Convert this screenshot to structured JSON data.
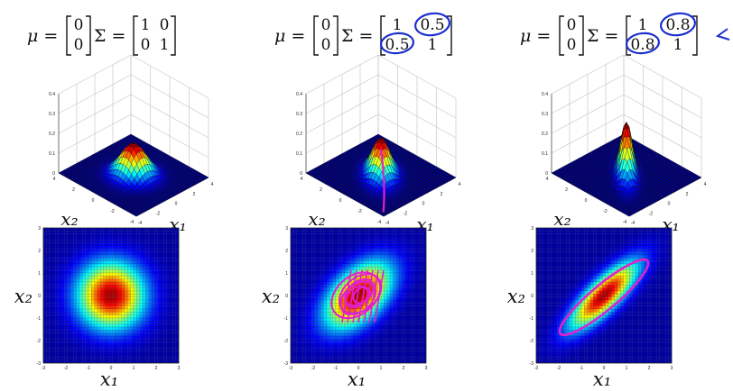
{
  "panels": [
    {
      "mu_label": "μ =",
      "mu": [
        "0",
        "0"
      ],
      "sigma_label": "Σ =",
      "sigma": [
        [
          "1",
          "0"
        ],
        [
          "0",
          "1"
        ]
      ],
      "rho": 0.0,
      "annotations": "none",
      "surface": {
        "z_ticks": [
          "0.4",
          "0.3",
          "0.2",
          "0.1",
          "0"
        ],
        "x2_ticks": [
          "4",
          "2",
          "0",
          "-2",
          "-4"
        ],
        "x1_ticks": [
          "-4",
          "-2",
          "0",
          "2",
          "4"
        ],
        "x2_label": "x₂",
        "x1_label": "x₁"
      },
      "heatmap": {
        "y_ticks": [
          "3",
          "2",
          "1",
          "0",
          "-1",
          "-2",
          "-3"
        ],
        "x_ticks": [
          "-3",
          "-2",
          "-1",
          "0",
          "1",
          "2",
          "3"
        ],
        "ylabel": "x₂",
        "xlabel": "x₁"
      }
    },
    {
      "mu_label": "μ =",
      "mu": [
        "0",
        "0"
      ],
      "sigma_label": "Σ =",
      "sigma": [
        [
          "1",
          "0.5"
        ],
        [
          "0.5",
          "1"
        ]
      ],
      "rho": 0.5,
      "annotations": "circles-and-scribble",
      "surface": {
        "z_ticks": [
          "0.4",
          "0.3",
          "0.2",
          "0.1",
          "0"
        ],
        "x2_ticks": [
          "4",
          "2",
          "0",
          "-2",
          "-4"
        ],
        "x1_ticks": [
          "-4",
          "-2",
          "0",
          "2",
          "4"
        ],
        "x2_label": "x₂",
        "x1_label": "x₁"
      },
      "heatmap": {
        "y_ticks": [
          "3",
          "2",
          "1",
          "0",
          "-1",
          "-2",
          "-3"
        ],
        "x_ticks": [
          "-3",
          "-2",
          "-1",
          "0",
          "1",
          "2",
          "3"
        ],
        "ylabel": "x₂",
        "xlabel": "x₁"
      }
    },
    {
      "mu_label": "μ =",
      "mu": [
        "0",
        "0"
      ],
      "sigma_label": "Σ =",
      "sigma": [
        [
          "1",
          "0.8"
        ],
        [
          "0.8",
          "1"
        ]
      ],
      "rho": 0.8,
      "annotations": "circles-arrow-ellipse",
      "surface": {
        "z_ticks": [
          "0.4",
          "0.3",
          "0.2",
          "0.1",
          "0"
        ],
        "x2_ticks": [
          "4",
          "2",
          "0",
          "-2",
          "-4"
        ],
        "x1_ticks": [
          "-4",
          "-2",
          "0",
          "2",
          "4"
        ],
        "x2_label": "x₂",
        "x1_label": "x₁"
      },
      "heatmap": {
        "y_ticks": [
          "3",
          "2",
          "1",
          "0",
          "-1",
          "-2",
          "-3"
        ],
        "x_ticks": [
          "-3",
          "-2",
          "-1",
          "0",
          "1",
          "2",
          "3"
        ],
        "ylabel": "x₂",
        "xlabel": "x₁"
      }
    }
  ],
  "colors": {
    "ink": "#111111",
    "annotation_blue": "#1a2fd0",
    "annotation_magenta": "#e020d0",
    "heatmap_cold": "#000090"
  },
  "colormap": "jet"
}
